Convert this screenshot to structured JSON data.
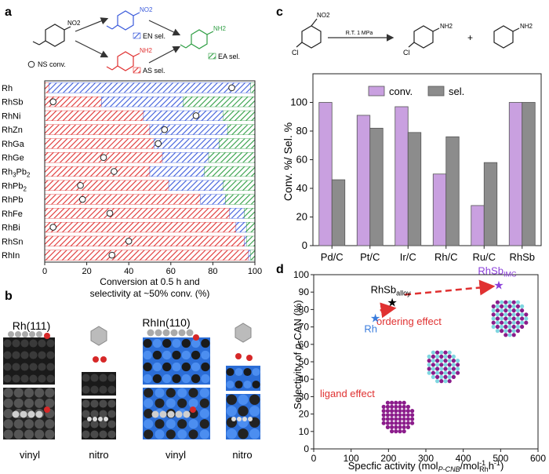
{
  "colors": {
    "en": "#3b5bdb",
    "as": "#e03131",
    "ea": "#2f9e44",
    "conv": "#c9a0e0",
    "sel": "#8c8c8c",
    "arrow": "#e03131",
    "rhsb_imc": "#8b3fd9",
    "star_rh": "#3b7ddd",
    "star_alloy": "#000000",
    "star_imc": "#8b3fd9"
  },
  "panel_a": {
    "label": "a",
    "legend": {
      "en": "EN sel.",
      "as": "AS sel.",
      "ea": "EA sel.",
      "ns": "NS conv."
    },
    "reaction": {
      "nitro": "NO2",
      "amine": "NH2"
    },
    "xlabel_line1": "Conversion at 0.5 h and",
    "xlabel_line2": "selectivity at ~50% conv. (%)",
    "xticks": [
      "0",
      "20",
      "40",
      "60",
      "80",
      "100"
    ],
    "rows": [
      {
        "name": "Rh",
        "sub": "",
        "name2": "",
        "sub2": "",
        "as": 2,
        "en": 96,
        "ea": 2,
        "conv": 89
      },
      {
        "name": "RhSb",
        "sub": "",
        "name2": "",
        "sub2": "",
        "as": 27,
        "en": 39,
        "ea": 34,
        "conv": 4
      },
      {
        "name": "RhNi",
        "sub": "",
        "name2": "",
        "sub2": "",
        "as": 47,
        "en": 38,
        "ea": 15,
        "conv": 72
      },
      {
        "name": "RhZn",
        "sub": "",
        "name2": "",
        "sub2": "",
        "as": 50,
        "en": 37,
        "ea": 13,
        "conv": 57
      },
      {
        "name": "RhGa",
        "sub": "",
        "name2": "",
        "sub2": "",
        "as": 52,
        "en": 31,
        "ea": 17,
        "conv": 54
      },
      {
        "name": "RhGe",
        "sub": "",
        "name2": "",
        "sub2": "",
        "as": 56,
        "en": 22,
        "ea": 22,
        "conv": 28
      },
      {
        "name": "Rh",
        "sub": "3",
        "name2": "Pb",
        "sub2": "2",
        "as": 50,
        "en": 26,
        "ea": 24,
        "conv": 33
      },
      {
        "name": "RhPb",
        "sub": "2",
        "name2": "",
        "sub2": "",
        "as": 59,
        "en": 26,
        "ea": 15,
        "conv": 17
      },
      {
        "name": "RhPb",
        "sub": "",
        "name2": "",
        "sub2": "",
        "as": 74,
        "en": 12,
        "ea": 14,
        "conv": 18
      },
      {
        "name": "RhFe",
        "sub": "",
        "name2": "",
        "sub2": "",
        "as": 88,
        "en": 7,
        "ea": 5,
        "conv": 31
      },
      {
        "name": "RhBi",
        "sub": "",
        "name2": "",
        "sub2": "",
        "as": 91,
        "en": 5,
        "ea": 4,
        "conv": 4
      },
      {
        "name": "RhSn",
        "sub": "",
        "name2": "",
        "sub2": "",
        "as": 95,
        "en": 1,
        "ea": 4,
        "conv": 40
      },
      {
        "name": "RhIn",
        "sub": "",
        "name2": "",
        "sub2": "",
        "as": 97,
        "en": 1,
        "ea": 2,
        "conv": 32
      }
    ]
  },
  "panel_b": {
    "label": "b",
    "title_left": "Rh(111)",
    "title_right": "RhIn(110)",
    "captions": [
      "vinyl",
      "nitro",
      "vinyl",
      "nitro"
    ]
  },
  "panel_c": {
    "label": "c",
    "reaction": {
      "condition": "R.T.  1 MPa",
      "nitro": "NO2",
      "amine1": "NH2",
      "amine2": "NH2",
      "plus": "+",
      "cl1": "Cl",
      "cl2": "Cl"
    },
    "ylabel": "Conv. %/ Sel. %",
    "yticks": [
      "0",
      "20",
      "40",
      "60",
      "80",
      "100"
    ],
    "legend": {
      "conv": "conv.",
      "sel": "sel."
    },
    "chart_data": {
      "type": "bar",
      "categories": [
        "Pd/C",
        "Pt/C",
        "Ir/C",
        "Rh/C",
        "Ru/C",
        "RhSb"
      ],
      "series": [
        {
          "name": "conv.",
          "values": [
            100,
            91,
            97,
            50,
            28,
            100
          ]
        },
        {
          "name": "sel.",
          "values": [
            46,
            82,
            79,
            76,
            58,
            100
          ]
        }
      ],
      "ylim": [
        0,
        120
      ]
    }
  },
  "panel_d": {
    "label": "d",
    "ylabel_pre": "Selectivity of ",
    "ylabel_it": "p",
    "ylabel_post": "-CAN (%)",
    "xlabel": "Specfic activity (mol",
    "xlabel_sub1": "P-CNB",
    "xlabel_mid": "/mol",
    "xlabel_sup": "-1",
    "xlabel_sub2": "Rh",
    "xlabel_end": "h",
    "xlabel_sup2": "-1",
    "xlabel_close": ")",
    "xticks": [
      "0",
      "100",
      "200",
      "300",
      "400",
      "500",
      "600"
    ],
    "yticks": [
      "0",
      "10",
      "20",
      "30",
      "40",
      "50",
      "60",
      "70",
      "80",
      "90",
      "100"
    ],
    "annotations": {
      "ligand": "ligand effect",
      "ordering": "ordering effect"
    },
    "chart_data": {
      "type": "scatter",
      "points": [
        {
          "label": "Rh",
          "x": 165,
          "y": 75
        },
        {
          "label": "RhSb",
          "sub": "alloy",
          "x": 210,
          "y": 84
        },
        {
          "label": "RhSb",
          "sub": "IMC",
          "x": 495,
          "y": 94
        }
      ],
      "xlim": [
        0,
        600
      ],
      "ylim": [
        0,
        100
      ]
    }
  }
}
